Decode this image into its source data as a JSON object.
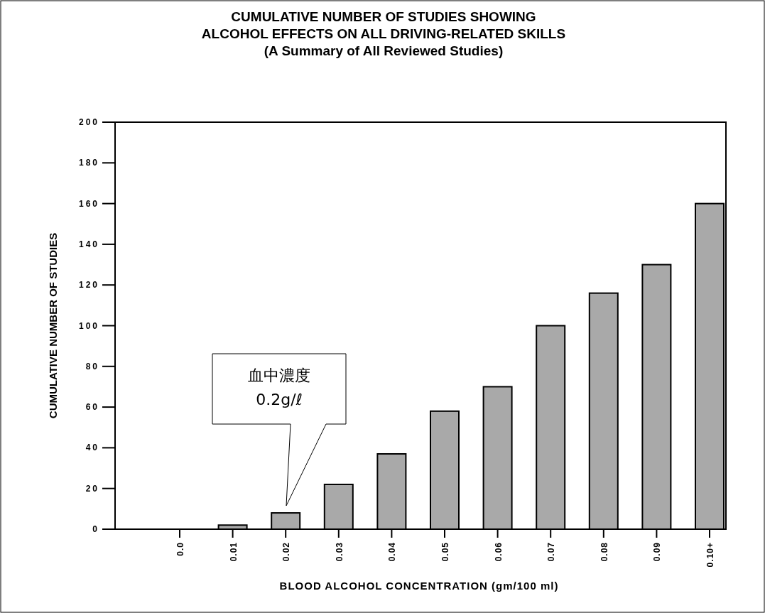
{
  "chart_data": {
    "type": "bar",
    "title": "CUMULATIVE NUMBER OF STUDIES SHOWING\nALCOHOL EFFECTS ON ALL DRIVING-RELATED SKILLS\n(A Summary of All Reviewed Studies)",
    "xlabel": "BLOOD ALCOHOL CONCENTRATION (gm/100 ml)",
    "ylabel": "CUMULATIVE NUMBER OF STUDIES",
    "categories": [
      "0.0",
      "0.01",
      "0.02",
      "0.03",
      "0.04",
      "0.05",
      "0.06",
      "0.07",
      "0.08",
      "0.09",
      "0.10+"
    ],
    "values": [
      0,
      2,
      8,
      22,
      37,
      58,
      70,
      100,
      116,
      130,
      160
    ],
    "color": "#a9a9a9",
    "ylim": [
      0,
      200
    ],
    "yticks": [
      0,
      20,
      40,
      60,
      80,
      100,
      120,
      140,
      160,
      180,
      200
    ],
    "grid": false,
    "annotations": [
      "血中濃度\n0.2g/ℓ"
    ]
  }
}
